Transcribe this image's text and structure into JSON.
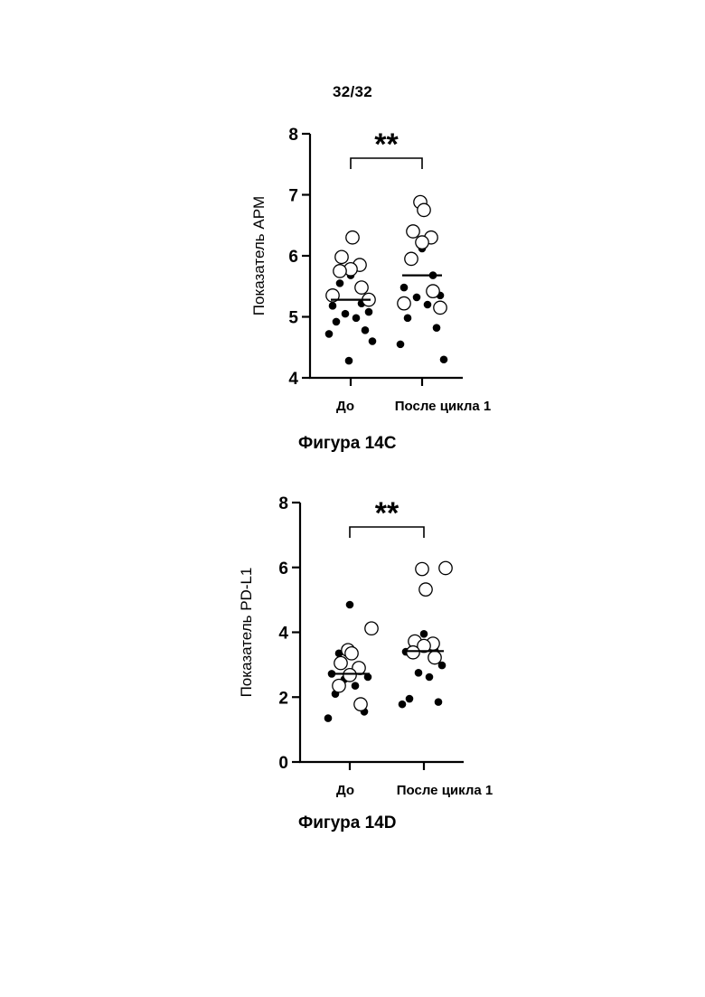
{
  "page": {
    "number": "32/32"
  },
  "chart_data": [
    {
      "type": "scatter",
      "caption": "Фигура 14C",
      "ylabel": "Показатель APM",
      "ylim": [
        4,
        8
      ],
      "yticks": [
        "4",
        "5",
        "6",
        "7",
        "8"
      ],
      "categories": [
        "До",
        "После цикла 1"
      ],
      "significance": "**",
      "medians": [
        5.28,
        5.68
      ],
      "series": [
        {
          "style": "filled",
          "points": [
            {
              "group": 0,
              "y": 5.68
            },
            {
              "group": 0,
              "y": 5.55
            },
            {
              "group": 0,
              "y": 5.22
            },
            {
              "group": 0,
              "y": 5.18
            },
            {
              "group": 0,
              "y": 5.08
            },
            {
              "group": 0,
              "y": 5.05
            },
            {
              "group": 0,
              "y": 4.98
            },
            {
              "group": 0,
              "y": 4.92
            },
            {
              "group": 0,
              "y": 4.78
            },
            {
              "group": 0,
              "y": 4.72
            },
            {
              "group": 0,
              "y": 4.6
            },
            {
              "group": 0,
              "y": 4.28
            },
            {
              "group": 1,
              "y": 6.12
            },
            {
              "group": 1,
              "y": 5.9
            },
            {
              "group": 1,
              "y": 5.68
            },
            {
              "group": 1,
              "y": 5.48
            },
            {
              "group": 1,
              "y": 5.35
            },
            {
              "group": 1,
              "y": 5.32
            },
            {
              "group": 1,
              "y": 5.2
            },
            {
              "group": 1,
              "y": 4.98
            },
            {
              "group": 1,
              "y": 4.82
            },
            {
              "group": 1,
              "y": 4.55
            },
            {
              "group": 1,
              "y": 4.3
            }
          ]
        },
        {
          "style": "open",
          "points": [
            {
              "group": 0,
              "y": 6.3
            },
            {
              "group": 0,
              "y": 5.98
            },
            {
              "group": 0,
              "y": 5.85
            },
            {
              "group": 0,
              "y": 5.78
            },
            {
              "group": 0,
              "y": 5.75
            },
            {
              "group": 0,
              "y": 5.48
            },
            {
              "group": 0,
              "y": 5.35
            },
            {
              "group": 0,
              "y": 5.28
            },
            {
              "group": 1,
              "y": 6.88
            },
            {
              "group": 1,
              "y": 6.75
            },
            {
              "group": 1,
              "y": 6.4
            },
            {
              "group": 1,
              "y": 6.3
            },
            {
              "group": 1,
              "y": 6.22
            },
            {
              "group": 1,
              "y": 5.95
            },
            {
              "group": 1,
              "y": 5.42
            },
            {
              "group": 1,
              "y": 5.22
            },
            {
              "group": 1,
              "y": 5.15
            }
          ]
        }
      ]
    },
    {
      "type": "scatter",
      "caption": "Фигура 14D",
      "ylabel": "Показатель PD-L1",
      "ylim": [
        0,
        8
      ],
      "yticks": [
        "0",
        "2",
        "4",
        "6",
        "8"
      ],
      "categories": [
        "До",
        "После цикла 1"
      ],
      "significance": "**",
      "medians": [
        2.72,
        3.42
      ],
      "series": [
        {
          "style": "filled",
          "points": [
            {
              "group": 0,
              "y": 4.85
            },
            {
              "group": 0,
              "y": 3.35
            },
            {
              "group": 0,
              "y": 2.8
            },
            {
              "group": 0,
              "y": 2.72
            },
            {
              "group": 0,
              "y": 2.62
            },
            {
              "group": 0,
              "y": 2.55
            },
            {
              "group": 0,
              "y": 2.35
            },
            {
              "group": 0,
              "y": 2.1
            },
            {
              "group": 0,
              "y": 1.55
            },
            {
              "group": 0,
              "y": 1.35
            },
            {
              "group": 1,
              "y": 3.95
            },
            {
              "group": 1,
              "y": 3.55
            },
            {
              "group": 1,
              "y": 3.45
            },
            {
              "group": 1,
              "y": 3.4
            },
            {
              "group": 1,
              "y": 2.98
            },
            {
              "group": 1,
              "y": 2.75
            },
            {
              "group": 1,
              "y": 2.62
            },
            {
              "group": 1,
              "y": 1.95
            },
            {
              "group": 1,
              "y": 1.85
            },
            {
              "group": 1,
              "y": 1.78
            }
          ]
        },
        {
          "style": "open",
          "points": [
            {
              "group": 0,
              "y": 4.12
            },
            {
              "group": 0,
              "y": 3.45
            },
            {
              "group": 0,
              "y": 3.35
            },
            {
              "group": 0,
              "y": 3.05
            },
            {
              "group": 0,
              "y": 2.9
            },
            {
              "group": 0,
              "y": 2.68
            },
            {
              "group": 0,
              "y": 2.35
            },
            {
              "group": 0,
              "y": 1.78
            },
            {
              "group": 1,
              "y": 5.98
            },
            {
              "group": 1,
              "y": 5.95
            },
            {
              "group": 1,
              "y": 5.32
            },
            {
              "group": 1,
              "y": 3.72
            },
            {
              "group": 1,
              "y": 3.65
            },
            {
              "group": 1,
              "y": 3.58
            },
            {
              "group": 1,
              "y": 3.38
            },
            {
              "group": 1,
              "y": 3.22
            }
          ]
        }
      ]
    }
  ]
}
